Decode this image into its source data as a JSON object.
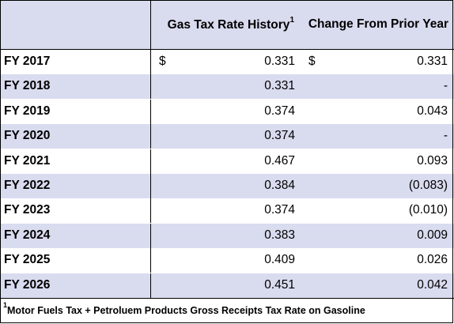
{
  "table": {
    "headers": {
      "year": "",
      "rate": "Gas Tax Rate History",
      "rate_sup": "1",
      "change": "Change From Prior Year"
    },
    "currency_symbol": "$",
    "rows": [
      {
        "year": "FY 2017",
        "rate": "0.331",
        "change": "0.331",
        "show_dollar": true
      },
      {
        "year": "FY 2018",
        "rate": "0.331",
        "change": "-"
      },
      {
        "year": "FY 2019",
        "rate": "0.374",
        "change": "0.043"
      },
      {
        "year": "FY 2020",
        "rate": "0.374",
        "change": "-"
      },
      {
        "year": "FY 2021",
        "rate": "0.467",
        "change": "0.093"
      },
      {
        "year": "FY 2022",
        "rate": "0.384",
        "change": "(0.083)"
      },
      {
        "year": "FY 2023",
        "rate": "0.374",
        "change": "(0.010)"
      },
      {
        "year": "FY 2024",
        "rate": "0.383",
        "change": "0.009"
      },
      {
        "year": "FY 2025",
        "rate": "0.409",
        "change": "0.026"
      },
      {
        "year": "FY 2026",
        "rate": "0.451",
        "change": "0.042"
      }
    ],
    "footnote": {
      "marker": "1",
      "text": "Motor Fuels Tax + Petroluem Products Gross Receipts Tax Rate on Gasoline"
    }
  },
  "colors": {
    "shade": "#d9dbef",
    "border": "#000000"
  }
}
